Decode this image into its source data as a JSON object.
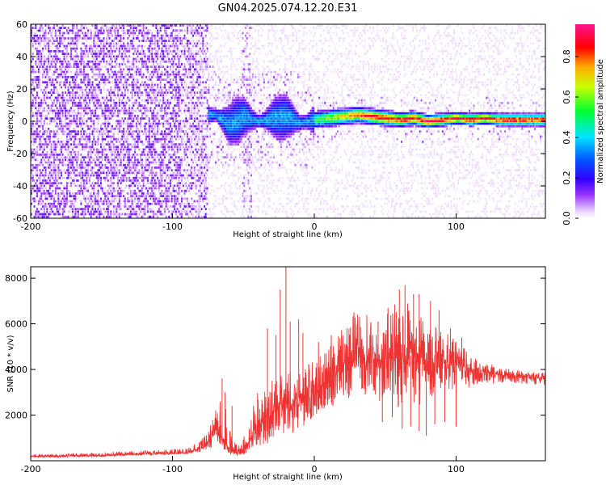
{
  "chart_data": [
    {
      "type": "heatmap",
      "title": "GN04.2025.074.12.20.E31",
      "xlabel": "Height of straight line (km)",
      "ylabel": "Frequency (Hz)",
      "xlim": [
        -200,
        163
      ],
      "ylim": [
        -60,
        60
      ],
      "xticks": [
        -200,
        -100,
        0,
        100
      ],
      "yticks": [
        -60,
        -40,
        -20,
        0,
        20,
        40,
        60
      ],
      "colorbar": {
        "label": "Normalized spectral amplitude",
        "range": [
          0,
          0.96
        ],
        "ticks": [
          0.0,
          0.2,
          0.4,
          0.6,
          0.8
        ],
        "tick_labels": [
          "0.0",
          "0.2",
          "0.4",
          "0.6",
          "0.8"
        ],
        "colormap": [
          "#ffffff",
          "#7a00ff",
          "#0000ff",
          "#00e5ff",
          "#00ff00",
          "#ffff00",
          "#ff8000",
          "#ff0000",
          "#ff0090"
        ]
      },
      "regions": [
        {
          "x": [
            -200,
            -75
          ],
          "freq_band": [
            -60,
            60
          ],
          "amplitude": "0.0-0.15",
          "description": "broadband noise"
        },
        {
          "x": [
            -75,
            0
          ],
          "freq_band": [
            -25,
            15
          ],
          "amplitude": "0.1-0.35"
        },
        {
          "x": [
            0,
            163
          ],
          "freq_band": [
            -8,
            8
          ],
          "amplitude": "0.2-0.96",
          "peak_freq": 0
        }
      ],
      "ridge": {
        "x": [
          -70,
          -60,
          -50,
          -40,
          -30,
          -20,
          -10,
          0,
          10,
          20,
          30,
          40,
          50,
          60,
          70,
          80,
          90,
          100,
          110,
          120,
          130,
          140,
          150,
          163
        ],
        "y": [
          3,
          -3,
          2,
          -1,
          1,
          2,
          -2,
          0,
          1,
          2,
          3,
          2,
          1,
          0,
          1,
          -1,
          0,
          1,
          0,
          1,
          0,
          0,
          0,
          0
        ]
      }
    },
    {
      "type": "line",
      "xlabel": "Height of straight line (km)",
      "ylabel": "SNR (10 * v/v)",
      "xlim": [
        -200,
        163
      ],
      "ylim": [
        0,
        8500
      ],
      "xticks": [
        -200,
        -100,
        0,
        100
      ],
      "yticks": [
        2000,
        4000,
        6000,
        8000
      ],
      "color": "#ee3333",
      "series": [
        {
          "x": [
            -200,
            -180,
            -160,
            -140,
            -120,
            -100,
            -90,
            -80,
            -75,
            -70,
            -65,
            -60,
            -55,
            -50,
            -45,
            -40,
            -35,
            -30,
            -25,
            -20,
            -15,
            -10,
            -5,
            0,
            5,
            10,
            15,
            20,
            25,
            30,
            35,
            40,
            45,
            50,
            55,
            60,
            65,
            70,
            75,
            80,
            85,
            90,
            95,
            100,
            105,
            110,
            115,
            120,
            130,
            140,
            150,
            163
          ],
          "base": [
            200,
            200,
            220,
            250,
            300,
            330,
            350,
            550,
            800,
            1300,
            1000,
            500,
            350,
            400,
            1000,
            1400,
            1800,
            2200,
            2500,
            2500,
            2600,
            2800,
            2800,
            2900,
            3200,
            3500,
            3800,
            4000,
            4300,
            4500,
            4600,
            4400,
            4300,
            4300,
            4400,
            4500,
            4600,
            4600,
            4400,
            4200,
            4200,
            4200,
            4200,
            4200,
            4100,
            4000,
            3900,
            3900,
            3800,
            3700,
            3700,
            3600
          ],
          "upper": [
            300,
            300,
            350,
            400,
            450,
            500,
            550,
            900,
            1300,
            2100,
            3000,
            1800,
            700,
            1000,
            2200,
            3400,
            3600,
            3800,
            3800,
            4000,
            4100,
            4200,
            4300,
            4400,
            4700,
            5000,
            5300,
            5700,
            6200,
            6500,
            6600,
            6200,
            6000,
            6400,
            6700,
            6800,
            6700,
            6600,
            6300,
            6000,
            5800,
            5600,
            5400,
            5300,
            5000,
            4700,
            4500,
            4300,
            4100,
            4000,
            3950,
            3850
          ],
          "lower": [
            150,
            150,
            170,
            200,
            250,
            280,
            300,
            400,
            500,
            700,
            500,
            300,
            200,
            250,
            450,
            600,
            700,
            900,
            1100,
            1200,
            1300,
            1400,
            1600,
            1800,
            2000,
            2200,
            2400,
            2600,
            2700,
            2700,
            2800,
            2700,
            2600,
            2400,
            2300,
            2300,
            2400,
            2400,
            2500,
            2700,
            2800,
            2900,
            3000,
            3100,
            3200,
            3300,
            3350,
            3400,
            3400,
            3400,
            3350,
            3300
          ],
          "spikes": [
            {
              "x": -65,
              "y": 3600
            },
            {
              "x": -63,
              "y": 3000
            },
            {
              "x": -58,
              "y": 2400
            },
            {
              "x": -33,
              "y": 5800
            },
            {
              "x": -27,
              "y": 5500
            },
            {
              "x": -24,
              "y": 7500
            },
            {
              "x": -20,
              "y": 8500
            },
            {
              "x": -17,
              "y": 6100
            },
            {
              "x": -11,
              "y": 6200
            },
            {
              "x": -8,
              "y": 5600
            },
            {
              "x": 3,
              "y": 5200
            },
            {
              "x": 12,
              "y": 5500
            },
            {
              "x": 28,
              "y": 6500
            },
            {
              "x": 32,
              "y": 6300
            },
            {
              "x": 45,
              "y": 6100
            },
            {
              "x": 52,
              "y": 6700
            },
            {
              "x": 60,
              "y": 7500
            },
            {
              "x": 64,
              "y": 7700
            },
            {
              "x": 70,
              "y": 7300
            },
            {
              "x": 74,
              "y": 7300
            },
            {
              "x": 82,
              "y": 7000
            },
            {
              "x": 88,
              "y": 6600
            },
            {
              "x": 96,
              "y": 5800
            },
            {
              "x": 104,
              "y": 5400
            }
          ],
          "dips": [
            {
              "x": 48,
              "y": 1700
            },
            {
              "x": 55,
              "y": 1900
            },
            {
              "x": 62,
              "y": 1400
            },
            {
              "x": 68,
              "y": 1500
            },
            {
              "x": 74,
              "y": 1300
            },
            {
              "x": 79,
              "y": 1100
            },
            {
              "x": 85,
              "y": 1600
            },
            {
              "x": 92,
              "y": 1700
            },
            {
              "x": 100,
              "y": 1500
            }
          ]
        }
      ]
    }
  ]
}
